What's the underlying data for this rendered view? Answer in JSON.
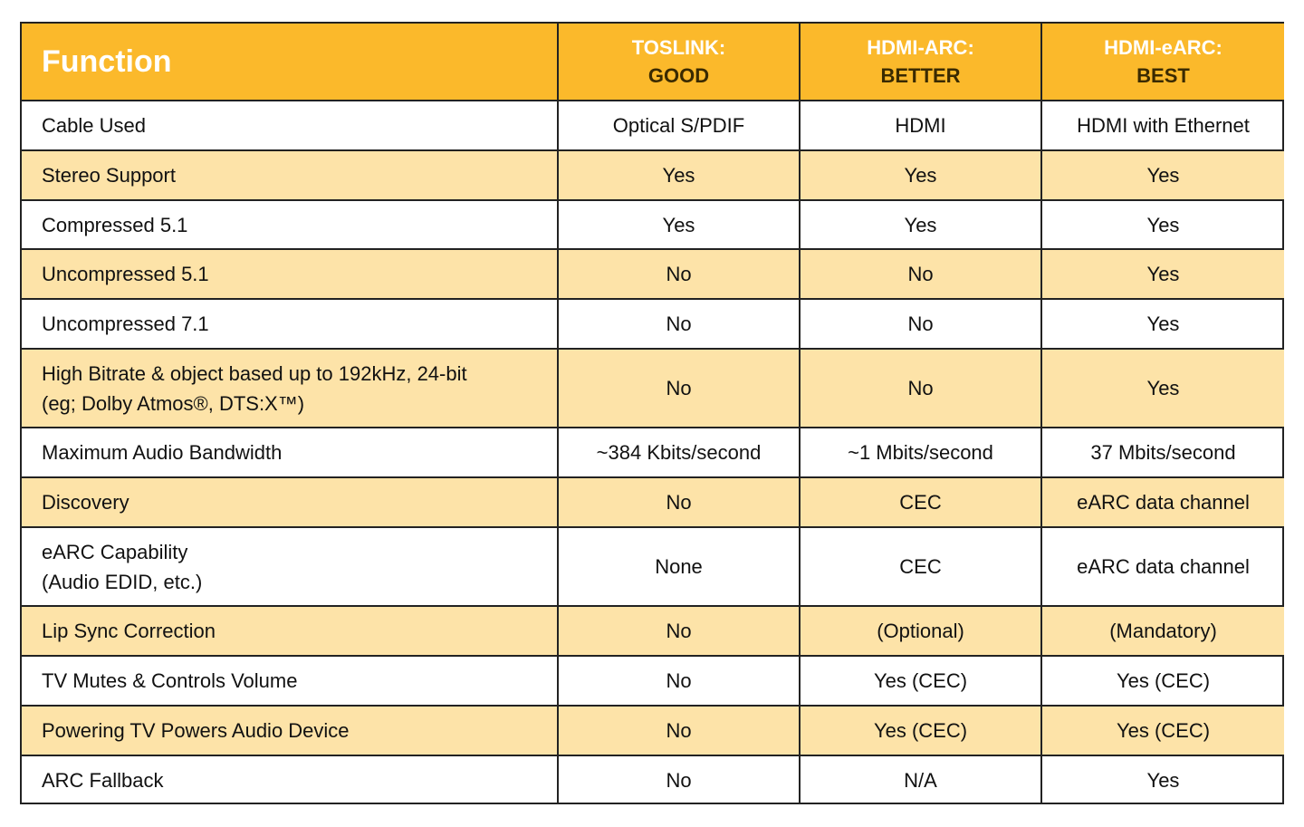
{
  "table": {
    "header": [
      {
        "lines": [
          "Function"
        ]
      },
      {
        "lines": [
          "TOSLINK:",
          "GOOD"
        ]
      },
      {
        "lines": [
          "HDMI-ARC:",
          "BETTER"
        ]
      },
      {
        "lines": [
          "HDMI-eARC:",
          "BEST"
        ]
      }
    ],
    "rows": [
      [
        [
          "Cable Used"
        ],
        [
          "Optical S/PDIF"
        ],
        [
          "HDMI"
        ],
        [
          "HDMI with Ethernet"
        ]
      ],
      [
        [
          "Stereo Support"
        ],
        [
          "Yes"
        ],
        [
          "Yes"
        ],
        [
          "Yes"
        ]
      ],
      [
        [
          "Compressed 5.1"
        ],
        [
          "Yes"
        ],
        [
          "Yes"
        ],
        [
          "Yes"
        ]
      ],
      [
        [
          "Uncompressed 5.1"
        ],
        [
          "No"
        ],
        [
          "No"
        ],
        [
          "Yes"
        ]
      ],
      [
        [
          "Uncompressed 7.1"
        ],
        [
          "No"
        ],
        [
          "No"
        ],
        [
          "Yes"
        ]
      ],
      [
        [
          "High Bitrate & object based up to 192kHz, 24-bit",
          "(eg; Dolby Atmos®, DTS:X™)"
        ],
        [
          "No"
        ],
        [
          "No"
        ],
        [
          "Yes"
        ]
      ],
      [
        [
          "Maximum Audio Bandwidth"
        ],
        [
          "~384 Kbits/second"
        ],
        [
          "~1 Mbits/second"
        ],
        [
          "37 Mbits/second"
        ]
      ],
      [
        [
          "Discovery"
        ],
        [
          "No"
        ],
        [
          "CEC"
        ],
        [
          "eARC data channel"
        ]
      ],
      [
        [
          "eARC Capability",
          "(Audio EDID, etc.)"
        ],
        [
          "None"
        ],
        [
          "CEC"
        ],
        [
          "eARC data channel"
        ]
      ],
      [
        [
          "Lip Sync Correction"
        ],
        [
          "No"
        ],
        [
          "(Optional)"
        ],
        [
          "(Mandatory)"
        ]
      ],
      [
        [
          "TV Mutes & Controls Volume"
        ],
        [
          "No"
        ],
        [
          "Yes (CEC)"
        ],
        [
          "Yes (CEC)"
        ]
      ],
      [
        [
          "Powering TV Powers Audio Device"
        ],
        [
          "No"
        ],
        [
          "Yes (CEC)"
        ],
        [
          "Yes (CEC)"
        ]
      ],
      [
        [
          "ARC Fallback"
        ],
        [
          "No"
        ],
        [
          "N/A"
        ],
        [
          "Yes"
        ]
      ]
    ]
  }
}
